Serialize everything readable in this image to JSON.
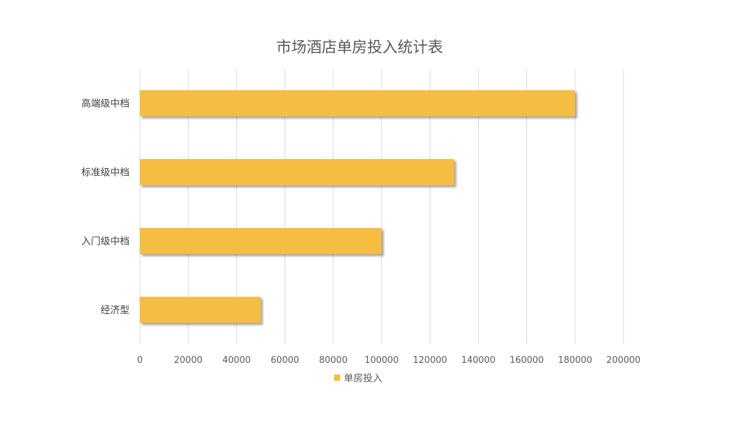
{
  "chart_data": {
    "type": "bar",
    "orientation": "horizontal",
    "title": "市场酒店单房投入统计表",
    "categories": [
      "高端级中档",
      "标准级中档",
      "入门级中档",
      "经济型"
    ],
    "series": [
      {
        "name": "单房投入",
        "values": [
          180000,
          130000,
          100000,
          50000
        ],
        "color": "#F5BD42"
      }
    ],
    "xlim": [
      0,
      200000
    ],
    "xticks": [
      "0",
      "20000",
      "40000",
      "60000",
      "80000",
      "100000",
      "120000",
      "140000",
      "160000",
      "180000",
      "200000"
    ],
    "grid": true,
    "legend": "bottom",
    "gridline_color": "#D9D9D9"
  }
}
